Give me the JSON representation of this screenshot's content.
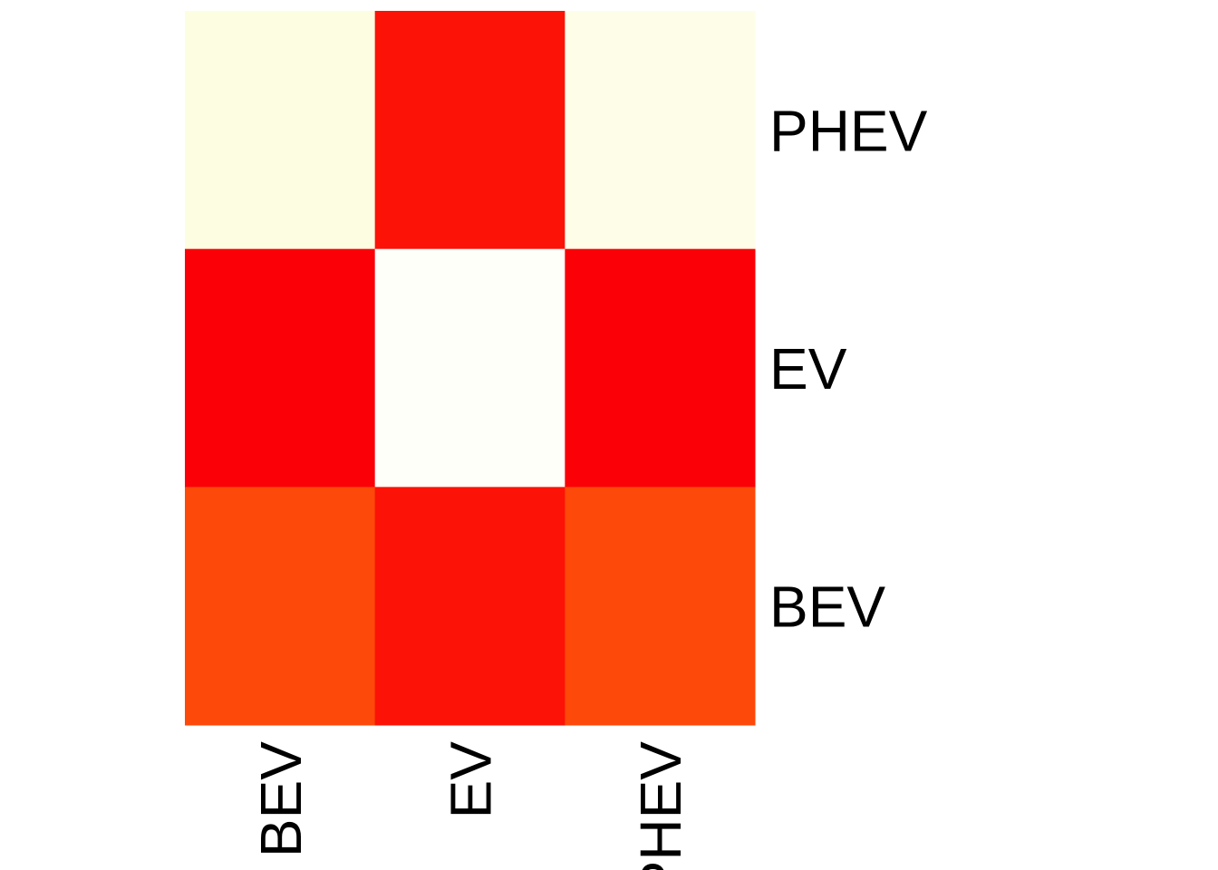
{
  "chart_data": {
    "type": "heatmap",
    "x_categories": [
      "BEV",
      "EV",
      "PHEV"
    ],
    "y_categories_top_to_bottom": [
      "PHEV",
      "EV",
      "BEV"
    ],
    "cells": [
      {
        "row": "PHEV",
        "col": "BEV",
        "color": "#fdfde2"
      },
      {
        "row": "PHEV",
        "col": "EV",
        "color": "#fc1207"
      },
      {
        "row": "PHEV",
        "col": "PHEV",
        "color": "#fefee8"
      },
      {
        "row": "EV",
        "col": "BEV",
        "color": "#fb0007"
      },
      {
        "row": "EV",
        "col": "EV",
        "color": "#fffffa"
      },
      {
        "row": "EV",
        "col": "PHEV",
        "color": "#fb0007"
      },
      {
        "row": "BEV",
        "col": "BEV",
        "color": "#fd4909"
      },
      {
        "row": "BEV",
        "col": "EV",
        "color": "#fc1207"
      },
      {
        "row": "BEV",
        "col": "PHEV",
        "color": "#fd4909"
      }
    ],
    "color_scale": "white-yellow-orange-red",
    "title": "",
    "xlabel": "",
    "ylabel": "",
    "legend": "none"
  }
}
